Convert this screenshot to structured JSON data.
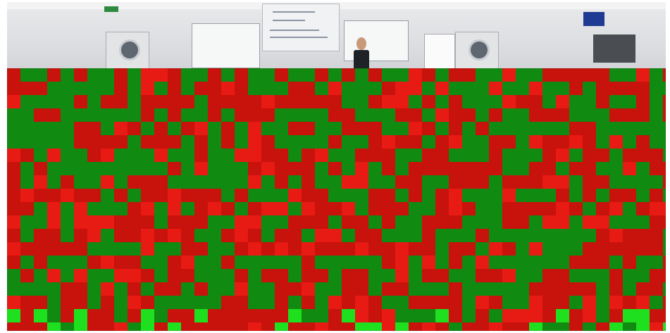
{
  "scene": {
    "description_hidden": false
  },
  "overlay": {
    "kind": "pixel-mosaic",
    "colors": {
      "dark_red": "#c8120c",
      "bright_red": "#e81a14",
      "green": "#108a10",
      "bright_green": "#1ee01e",
      "grid_line": "#1a1a1a"
    }
  }
}
